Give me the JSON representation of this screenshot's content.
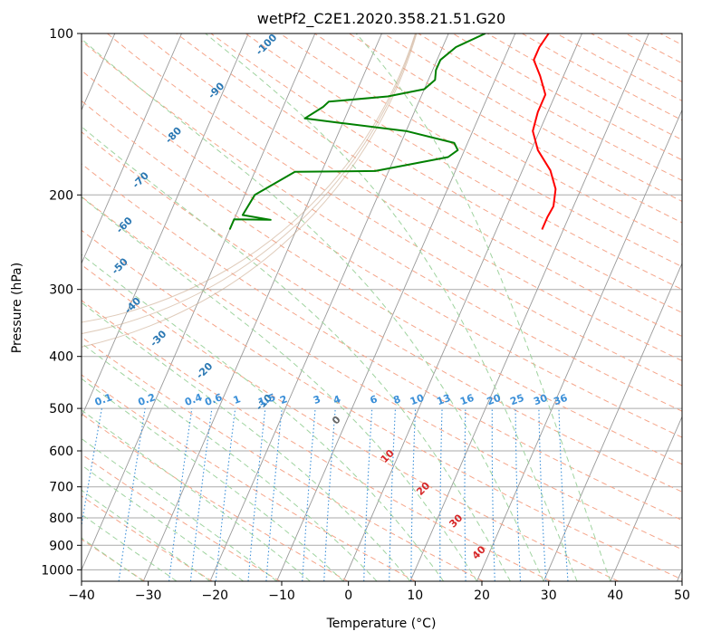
{
  "chart_data": {
    "type": "line",
    "subtype": "skew-t log-p diagram",
    "title": "wetPf2_C2E1.2020.358.21.51.G20",
    "xlabel": "Temperature (°C)",
    "ylabel": "Pressure (hPa)",
    "xlim": [
      -40,
      50
    ],
    "ylim": [
      1050,
      100
    ],
    "y_scale": "log",
    "grid": true,
    "x_ticks": [
      "−40",
      "−30",
      "−20",
      "−10",
      "0",
      "10",
      "20",
      "30",
      "40",
      "50"
    ],
    "y_ticks": [
      {
        "label": "100",
        "p": 100
      },
      {
        "label": "200",
        "p": 200
      },
      {
        "label": "300",
        "p": 300
      },
      {
        "label": "400",
        "p": 400
      },
      {
        "label": "500",
        "p": 500
      },
      {
        "label": "600",
        "p": 600
      },
      {
        "label": "700",
        "p": 700
      },
      {
        "label": "800",
        "p": 800
      },
      {
        "label": "900",
        "p": 900
      },
      {
        "label": "1000",
        "p": 1000
      }
    ],
    "colors": {
      "temperature": "#ff0000",
      "dewpoint": "#008000",
      "dry_adiabat": "#f5a58a",
      "moist_adiabat": "#9fd39f",
      "isotherm": "#999999",
      "isobar": "#aaaaaa",
      "mixing_ratio": "#3a8fd8",
      "frost_point_contour": "#2b78b3",
      "deg_labels": "#d62728"
    },
    "series": [
      {
        "kind": "temperature",
        "points": [
          {
            "t": 6.8,
            "p": 232
          },
          {
            "t": 6.8,
            "p": 220
          },
          {
            "t": 7.0,
            "p": 210
          },
          {
            "t": 6.2,
            "p": 195
          },
          {
            "t": 4.2,
            "p": 180
          },
          {
            "t": 1.0,
            "p": 165
          },
          {
            "t": -1.0,
            "p": 152
          },
          {
            "t": -1.5,
            "p": 140
          },
          {
            "t": -1.5,
            "p": 130
          },
          {
            "t": -3.5,
            "p": 120
          },
          {
            "t": -5.5,
            "p": 112
          },
          {
            "t": -5.5,
            "p": 106
          },
          {
            "t": -5.0,
            "p": 100
          }
        ]
      },
      {
        "kind": "dewpoint",
        "points": [
          {
            "t": -40.0,
            "p": 232
          },
          {
            "t": -40.0,
            "p": 222
          },
          {
            "t": -34.5,
            "p": 222.5
          },
          {
            "t": -39.0,
            "p": 218
          },
          {
            "t": -38.5,
            "p": 200
          },
          {
            "t": -34.0,
            "p": 181
          },
          {
            "t": -22.0,
            "p": 180.5
          },
          {
            "t": -12.0,
            "p": 170
          },
          {
            "t": -11.0,
            "p": 165
          },
          {
            "t": -12.0,
            "p": 160
          },
          {
            "t": -20.0,
            "p": 152
          },
          {
            "t": -30.0,
            "p": 147
          },
          {
            "t": -36.0,
            "p": 144
          },
          {
            "t": -34.0,
            "p": 137
          },
          {
            "t": -33.5,
            "p": 134
          },
          {
            "t": -25.0,
            "p": 131
          },
          {
            "t": -20.0,
            "p": 127
          },
          {
            "t": -19.0,
            "p": 122
          },
          {
            "t": -19.5,
            "p": 117
          },
          {
            "t": -19.5,
            "p": 112
          },
          {
            "t": -18.0,
            "p": 106
          },
          {
            "t": -14.5,
            "p": 100
          }
        ]
      }
    ],
    "frost_point_labels": [
      {
        "text": "-100",
        "t": -46.5,
        "p": 105
      },
      {
        "text": "-90",
        "t": -51.0,
        "p": 128
      },
      {
        "text": "-80",
        "t": -54.5,
        "p": 155
      },
      {
        "text": "-70",
        "t": -56.5,
        "p": 188
      },
      {
        "text": "-60",
        "t": -56.0,
        "p": 228
      },
      {
        "text": "-50",
        "t": -54.0,
        "p": 272
      },
      {
        "text": "-40",
        "t": -49.5,
        "p": 322
      },
      {
        "text": "-30",
        "t": -43.5,
        "p": 371
      },
      {
        "text": "-20",
        "t": -34.5,
        "p": 426
      },
      {
        "text": "-10",
        "t": -23.5,
        "p": 488
      },
      {
        "text": "0",
        "t": -11.5,
        "p": 527
      }
    ],
    "degree_labels": [
      {
        "text": "10",
        "t": -1.5,
        "p": 615
      },
      {
        "text": "20",
        "t": 6.0,
        "p": 707
      },
      {
        "text": "30",
        "t": 13.0,
        "p": 812
      },
      {
        "text": "40",
        "t": 18.5,
        "p": 930
      }
    ],
    "mixing_ratio_labels": [
      "0.1",
      "0.2",
      "0.4",
      "0.6",
      "1",
      "1.5",
      "2",
      "3",
      "4",
      "6",
      "8",
      "10",
      "13",
      "16",
      "20",
      "25",
      "30",
      "36"
    ],
    "mixing_ratio_label_t": [
      -47.5,
      -41.0,
      -34.0,
      -31.0,
      -27.5,
      -23.0,
      -20.5,
      -15.5,
      -12.5,
      -7.0,
      -3.5,
      -0.5,
      3.5,
      7.0,
      11.0,
      14.5,
      18.0,
      21.0
    ]
  }
}
